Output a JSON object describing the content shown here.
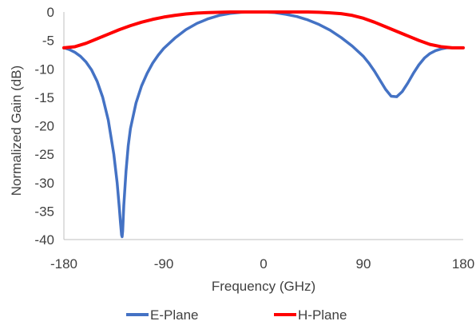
{
  "chart_data": {
    "type": "line",
    "title": "",
    "xlabel": "Frequency (GHz)",
    "ylabel": "Normalized Gain (dB)",
    "xlim": [
      -180,
      180
    ],
    "ylim": [
      -40,
      0
    ],
    "xticks": [
      -180,
      -90,
      0,
      90,
      180
    ],
    "yticks": [
      0,
      -5,
      -10,
      -15,
      -20,
      -25,
      -30,
      -35,
      -40
    ],
    "xtick_labels": [
      "-180",
      "-90",
      "0",
      "90",
      "180"
    ],
    "ytick_labels": [
      "0",
      "-5",
      "-10",
      "-15",
      "-20",
      "-25",
      "-30",
      "-35",
      "-40"
    ],
    "grid": false,
    "legend_position": "bottom",
    "series": [
      {
        "name": "E-Plane",
        "color": "#4472C4",
        "x": [
          -180,
          -175,
          -170,
          -165,
          -160,
          -155,
          -150,
          -145,
          -140,
          -135,
          -132,
          -130,
          -129,
          -128,
          -127.5,
          -127,
          -126,
          -124,
          -122,
          -120,
          -115,
          -110,
          -105,
          -100,
          -95,
          -90,
          -80,
          -70,
          -60,
          -50,
          -40,
          -30,
          -20,
          -10,
          0,
          10,
          20,
          30,
          40,
          50,
          60,
          70,
          80,
          90,
          95,
          100,
          105,
          110,
          115,
          120,
          125,
          130,
          135,
          140,
          145,
          150,
          155,
          160,
          165,
          170,
          175,
          180
        ],
        "y": [
          -6.3,
          -6.6,
          -7.1,
          -7.8,
          -8.8,
          -10.2,
          -12.2,
          -15,
          -19,
          -25,
          -30,
          -34.5,
          -37,
          -39.2,
          -39.5,
          -38.5,
          -34,
          -28,
          -23.5,
          -20.5,
          -16,
          -13,
          -10.8,
          -9,
          -7.6,
          -6.4,
          -4.6,
          -3.1,
          -2,
          -1.2,
          -0.6,
          -0.25,
          -0.05,
          0,
          0,
          -0.1,
          -0.4,
          -0.8,
          -1.4,
          -2.2,
          -3.2,
          -4.5,
          -6,
          -7.8,
          -9,
          -10.4,
          -12,
          -13.6,
          -14.8,
          -14.9,
          -14,
          -12.5,
          -10.8,
          -9.3,
          -8.1,
          -7.3,
          -6.8,
          -6.5,
          -6.3,
          -6.3,
          -6.3,
          -6.3
        ]
      },
      {
        "name": "H-Plane",
        "color": "#FF0000",
        "x": [
          -180,
          -170,
          -160,
          -150,
          -140,
          -130,
          -120,
          -110,
          -100,
          -90,
          -80,
          -70,
          -60,
          -50,
          -40,
          -30,
          -20,
          -10,
          0,
          10,
          20,
          30,
          40,
          50,
          60,
          70,
          80,
          90,
          100,
          110,
          120,
          130,
          140,
          150,
          160,
          170,
          180
        ],
        "y": [
          -6.3,
          -6.1,
          -5.5,
          -4.7,
          -3.9,
          -3.1,
          -2.4,
          -1.8,
          -1.3,
          -0.9,
          -0.6,
          -0.35,
          -0.2,
          -0.1,
          -0.05,
          0,
          0,
          0,
          0,
          0,
          0,
          0,
          0,
          -0.05,
          -0.15,
          -0.3,
          -0.6,
          -1.1,
          -1.8,
          -2.6,
          -3.4,
          -4.2,
          -5,
          -5.7,
          -6.1,
          -6.3,
          -6.3
        ]
      }
    ]
  }
}
